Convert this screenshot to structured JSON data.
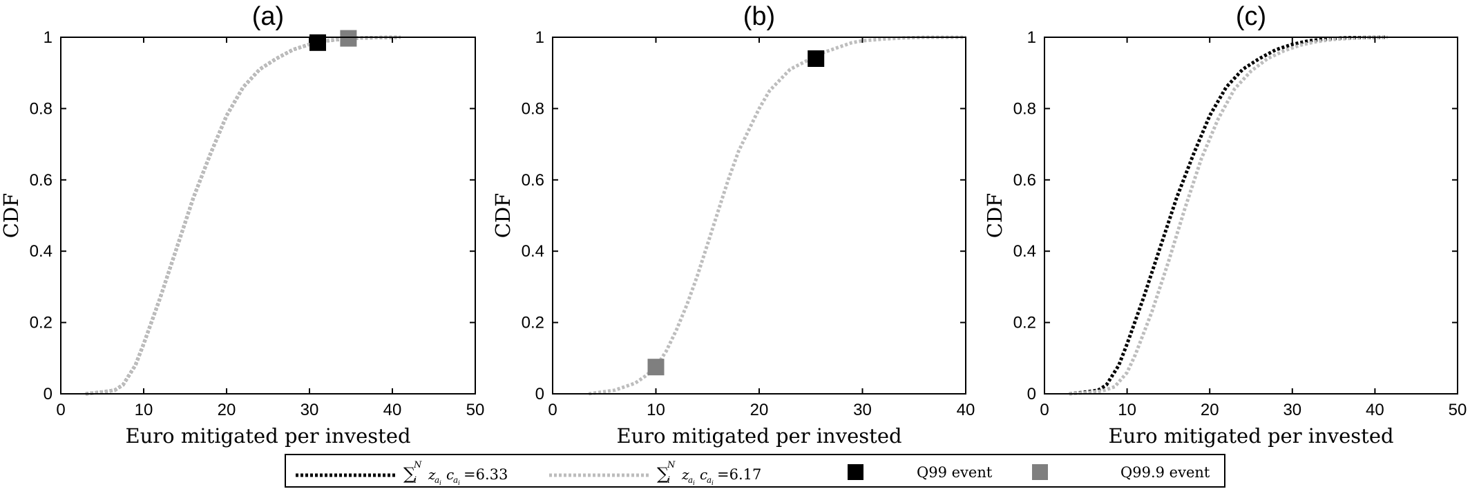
{
  "colors": {
    "black": "#000000",
    "gray": "#7f7f7f",
    "light": "#bdbdbd"
  },
  "legend": {
    "entries": [
      {
        "style": "dotted-black",
        "label": "=6.33"
      },
      {
        "style": "dotted-light",
        "label": "=6.17"
      },
      {
        "style": "square-black",
        "label": "Q99 event"
      },
      {
        "style": "square-gray",
        "label": "Q99.9 event"
      }
    ]
  },
  "chart_data": [
    {
      "type": "line",
      "title": "(a)",
      "xlabel": "Euro mitigated per invested",
      "ylabel": "CDF",
      "xlim": [
        0,
        50
      ],
      "ylim": [
        0,
        1
      ],
      "xticks": [
        0,
        10,
        20,
        30,
        40,
        50
      ],
      "yticks": [
        0,
        0.2,
        0.4,
        0.6,
        0.8,
        1
      ],
      "series": [
        {
          "name": "=6.33",
          "style": "dotted-black",
          "x": [
            3,
            5,
            6.5,
            7.5,
            9,
            10,
            12,
            14,
            16,
            18,
            20,
            22,
            24,
            26,
            28,
            30,
            32,
            34,
            36,
            38,
            41
          ],
          "y": [
            0,
            0.005,
            0.01,
            0.025,
            0.08,
            0.14,
            0.27,
            0.41,
            0.55,
            0.67,
            0.78,
            0.86,
            0.91,
            0.94,
            0.965,
            0.98,
            0.99,
            0.995,
            0.998,
            0.999,
            1.0
          ]
        },
        {
          "name": "=6.17",
          "style": "dotted-light",
          "x": [
            3,
            5,
            6.5,
            7.5,
            9,
            10,
            12,
            14,
            16,
            18,
            20,
            22,
            24,
            26,
            28,
            30,
            32,
            34,
            36,
            38,
            41
          ],
          "y": [
            0,
            0.005,
            0.01,
            0.025,
            0.08,
            0.14,
            0.27,
            0.41,
            0.55,
            0.67,
            0.78,
            0.86,
            0.91,
            0.94,
            0.965,
            0.98,
            0.99,
            0.995,
            0.998,
            0.999,
            1.0
          ]
        }
      ],
      "markers": [
        {
          "name": "Q99 event",
          "style": "square-black",
          "x": 31.0,
          "y": 0.985
        },
        {
          "name": "Q99.9 event",
          "style": "square-gray",
          "x": 34.7,
          "y": 0.997
        }
      ]
    },
    {
      "type": "line",
      "title": "(b)",
      "xlabel": "Euro mitigated per invested",
      "ylabel": "CDF",
      "xlim": [
        0,
        40
      ],
      "ylim": [
        0,
        1
      ],
      "xticks": [
        0,
        10,
        20,
        30,
        40
      ],
      "yticks": [
        0,
        0.2,
        0.4,
        0.6,
        0.8,
        1
      ],
      "series": [
        {
          "name": "=6.17",
          "style": "dotted-light",
          "x": [
            3.5,
            6,
            8,
            9,
            10,
            11,
            12,
            13,
            14,
            15,
            16,
            17,
            18,
            19,
            20,
            21,
            22,
            23,
            24,
            25,
            26,
            27,
            28,
            29,
            30,
            32,
            34,
            36,
            40
          ],
          "y": [
            0,
            0.01,
            0.03,
            0.05,
            0.075,
            0.12,
            0.18,
            0.25,
            0.33,
            0.42,
            0.51,
            0.6,
            0.68,
            0.74,
            0.8,
            0.85,
            0.88,
            0.91,
            0.925,
            0.94,
            0.955,
            0.965,
            0.975,
            0.985,
            0.99,
            0.995,
            0.998,
            1.0,
            1.0
          ]
        }
      ],
      "markers": [
        {
          "name": "Q99 event",
          "style": "square-black",
          "x": 25.5,
          "y": 0.94
        },
        {
          "name": "Q99.9 event",
          "style": "square-gray",
          "x": 10.0,
          "y": 0.075
        }
      ]
    },
    {
      "type": "line",
      "title": "(c)",
      "xlabel": "Euro mitigated per invested",
      "ylabel": "CDF",
      "xlim": [
        0,
        50
      ],
      "ylim": [
        0,
        1
      ],
      "xticks": [
        0,
        10,
        20,
        30,
        40,
        50
      ],
      "yticks": [
        0,
        0.2,
        0.4,
        0.6,
        0.8,
        1
      ],
      "series": [
        {
          "name": "=6.33",
          "style": "dotted-black",
          "x": [
            3,
            5,
            6.5,
            7.5,
            9,
            10,
            12,
            14,
            16,
            18,
            20,
            22,
            24,
            26,
            28,
            30,
            32,
            34,
            36,
            38,
            41.5
          ],
          "y": [
            0,
            0.005,
            0.01,
            0.025,
            0.08,
            0.14,
            0.27,
            0.41,
            0.55,
            0.67,
            0.78,
            0.86,
            0.91,
            0.94,
            0.965,
            0.98,
            0.99,
            0.995,
            0.998,
            0.999,
            1.0
          ]
        },
        {
          "name": "=6.17",
          "style": "dotted-light",
          "x": [
            3,
            5,
            7,
            8.5,
            10,
            11,
            13,
            15,
            17,
            19,
            21,
            23,
            25,
            27,
            29,
            31,
            33,
            35,
            37,
            39,
            41.5
          ],
          "y": [
            0,
            0.003,
            0.008,
            0.02,
            0.06,
            0.11,
            0.23,
            0.37,
            0.52,
            0.66,
            0.77,
            0.855,
            0.905,
            0.94,
            0.962,
            0.978,
            0.988,
            0.994,
            0.997,
            0.999,
            1.0
          ]
        }
      ],
      "markers": []
    }
  ]
}
